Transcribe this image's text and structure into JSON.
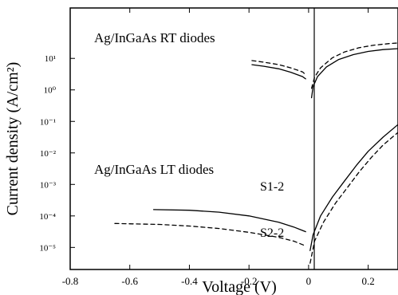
{
  "chart_data": {
    "type": "line",
    "xlabel": "Voltage (V)",
    "ylabel": "Current density (A/cm²)",
    "xlim": [
      -0.8,
      0.3
    ],
    "ylim": [
      -5.7,
      2.6
    ],
    "y_scale": "log10",
    "x_tick_labels": [
      "-0.8",
      "-0.6",
      "-0.4",
      "-0.2",
      "0",
      "0.2"
    ],
    "x_ticks": [
      -0.8,
      -0.6,
      -0.4,
      -0.2,
      0,
      0.2
    ],
    "y_tick_labels": [
      "10¹",
      "10⁰",
      "10⁻¹",
      "10⁻²",
      "10⁻³",
      "10⁻⁴",
      "10⁻⁵"
    ],
    "y_ticks": [
      1,
      0,
      -1,
      -2,
      -3,
      -4,
      -5
    ],
    "annotations": {
      "rt": "Ag/InGaAs  RT  diodes",
      "lt": "Ag/InGaAs  LT  diodes",
      "s1": "S1-2",
      "s2": "S2-2"
    },
    "series": [
      {
        "style": "solid",
        "group": "RT",
        "points": [
          [
            -0.19,
            0.8
          ],
          [
            -0.15,
            0.75
          ],
          [
            -0.1,
            0.67
          ],
          [
            -0.06,
            0.56
          ],
          [
            -0.02,
            0.42
          ],
          [
            -0.01,
            0.35
          ]
        ]
      },
      {
        "style": "dashed",
        "group": "RT",
        "points": [
          [
            -0.19,
            0.93
          ],
          [
            -0.15,
            0.88
          ],
          [
            -0.1,
            0.8
          ],
          [
            -0.06,
            0.7
          ],
          [
            -0.02,
            0.57
          ],
          [
            -0.01,
            0.48
          ]
        ]
      },
      {
        "style": "solid",
        "group": "RT",
        "points": [
          [
            0.01,
            -0.25
          ],
          [
            0.015,
            0.1
          ],
          [
            0.03,
            0.42
          ],
          [
            0.06,
            0.73
          ],
          [
            0.1,
            0.96
          ],
          [
            0.15,
            1.12
          ],
          [
            0.2,
            1.22
          ],
          [
            0.25,
            1.28
          ],
          [
            0.3,
            1.31
          ]
        ]
      },
      {
        "style": "dashed",
        "group": "RT",
        "points": [
          [
            0.01,
            0.05
          ],
          [
            0.02,
            0.4
          ],
          [
            0.04,
            0.7
          ],
          [
            0.08,
            1.02
          ],
          [
            0.12,
            1.2
          ],
          [
            0.17,
            1.34
          ],
          [
            0.22,
            1.42
          ],
          [
            0.27,
            1.47
          ],
          [
            0.3,
            1.49
          ]
        ]
      },
      {
        "name": "S1-2",
        "style": "solid",
        "group": "LT",
        "points": [
          [
            -0.52,
            -3.8
          ],
          [
            -0.4,
            -3.82
          ],
          [
            -0.3,
            -3.88
          ],
          [
            -0.2,
            -4.0
          ],
          [
            -0.1,
            -4.2
          ],
          [
            -0.05,
            -4.35
          ],
          [
            -0.01,
            -4.5
          ]
        ]
      },
      {
        "name": "S2-2",
        "style": "dashed",
        "group": "LT",
        "points": [
          [
            -0.65,
            -4.24
          ],
          [
            -0.5,
            -4.27
          ],
          [
            -0.4,
            -4.32
          ],
          [
            -0.3,
            -4.4
          ],
          [
            -0.2,
            -4.52
          ],
          [
            -0.1,
            -4.68
          ],
          [
            -0.05,
            -4.8
          ],
          [
            -0.01,
            -4.95
          ]
        ]
      },
      {
        "name": "S1-2",
        "style": "solid",
        "group": "LT",
        "points": [
          [
            0.005,
            -5.1
          ],
          [
            0.015,
            -4.6
          ],
          [
            0.04,
            -4.0
          ],
          [
            0.08,
            -3.4
          ],
          [
            0.12,
            -2.9
          ],
          [
            0.16,
            -2.4
          ],
          [
            0.2,
            -1.95
          ],
          [
            0.25,
            -1.5
          ],
          [
            0.3,
            -1.1
          ]
        ]
      },
      {
        "name": "S2-2",
        "style": "dashed",
        "group": "LT",
        "points": [
          [
            0.005,
            -5.5
          ],
          [
            0.02,
            -4.8
          ],
          [
            0.05,
            -4.2
          ],
          [
            0.09,
            -3.6
          ],
          [
            0.13,
            -3.1
          ],
          [
            0.17,
            -2.6
          ],
          [
            0.21,
            -2.15
          ],
          [
            0.25,
            -1.75
          ],
          [
            0.3,
            -1.35
          ]
        ]
      }
    ]
  }
}
